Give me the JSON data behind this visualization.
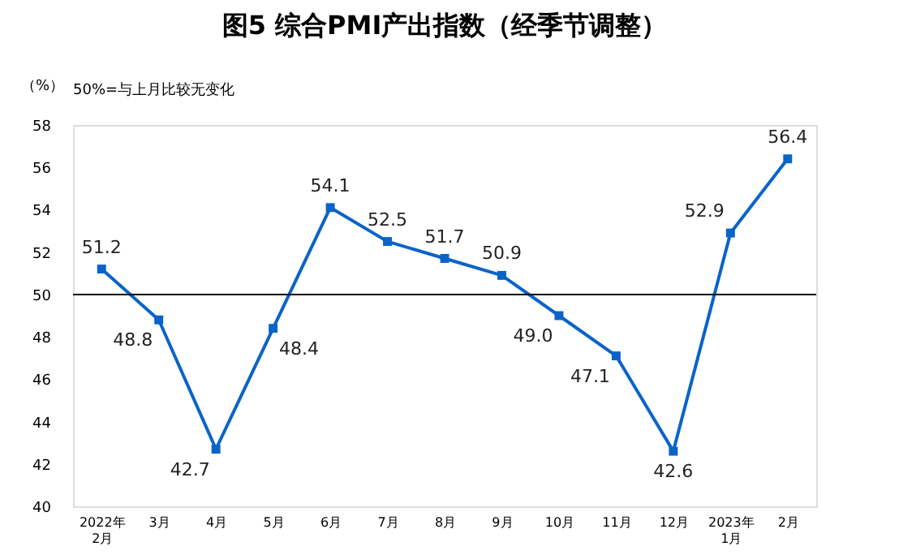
{
  "chart_data": {
    "type": "line",
    "title": "图5  综合PMI产出指数（经季节调整）",
    "ylabel": "（%）",
    "annotations": [
      "50%=与上月比较无变化"
    ],
    "categories": [
      "2022年\n2月",
      "3月",
      "4月",
      "5月",
      "6月",
      "7月",
      "8月",
      "9月",
      "10月",
      "11月",
      "12月",
      "2023年\n1月",
      "2月"
    ],
    "series": [
      {
        "color": "#0a64c8",
        "values": [
          51.2,
          48.8,
          42.7,
          48.4,
          54.1,
          52.5,
          51.7,
          50.9,
          49.0,
          47.1,
          42.6,
          52.9,
          56.4
        ],
        "value_labels": [
          "51.2",
          "48.8",
          "42.7",
          "48.4",
          "54.1",
          "52.5",
          "51.7",
          "50.9",
          "49.0",
          "47.1",
          "42.6",
          "52.9",
          "56.4"
        ]
      }
    ],
    "ylim": [
      40,
      58
    ],
    "yticks": [
      40,
      42,
      44,
      46,
      48,
      50,
      52,
      54,
      56,
      58
    ],
    "ref_lines": [
      {
        "axis": "y",
        "value": 50,
        "color": "#000000"
      }
    ],
    "marker": "square",
    "line_style": "solid",
    "data_labels": true,
    "grid": false,
    "legend": false
  }
}
